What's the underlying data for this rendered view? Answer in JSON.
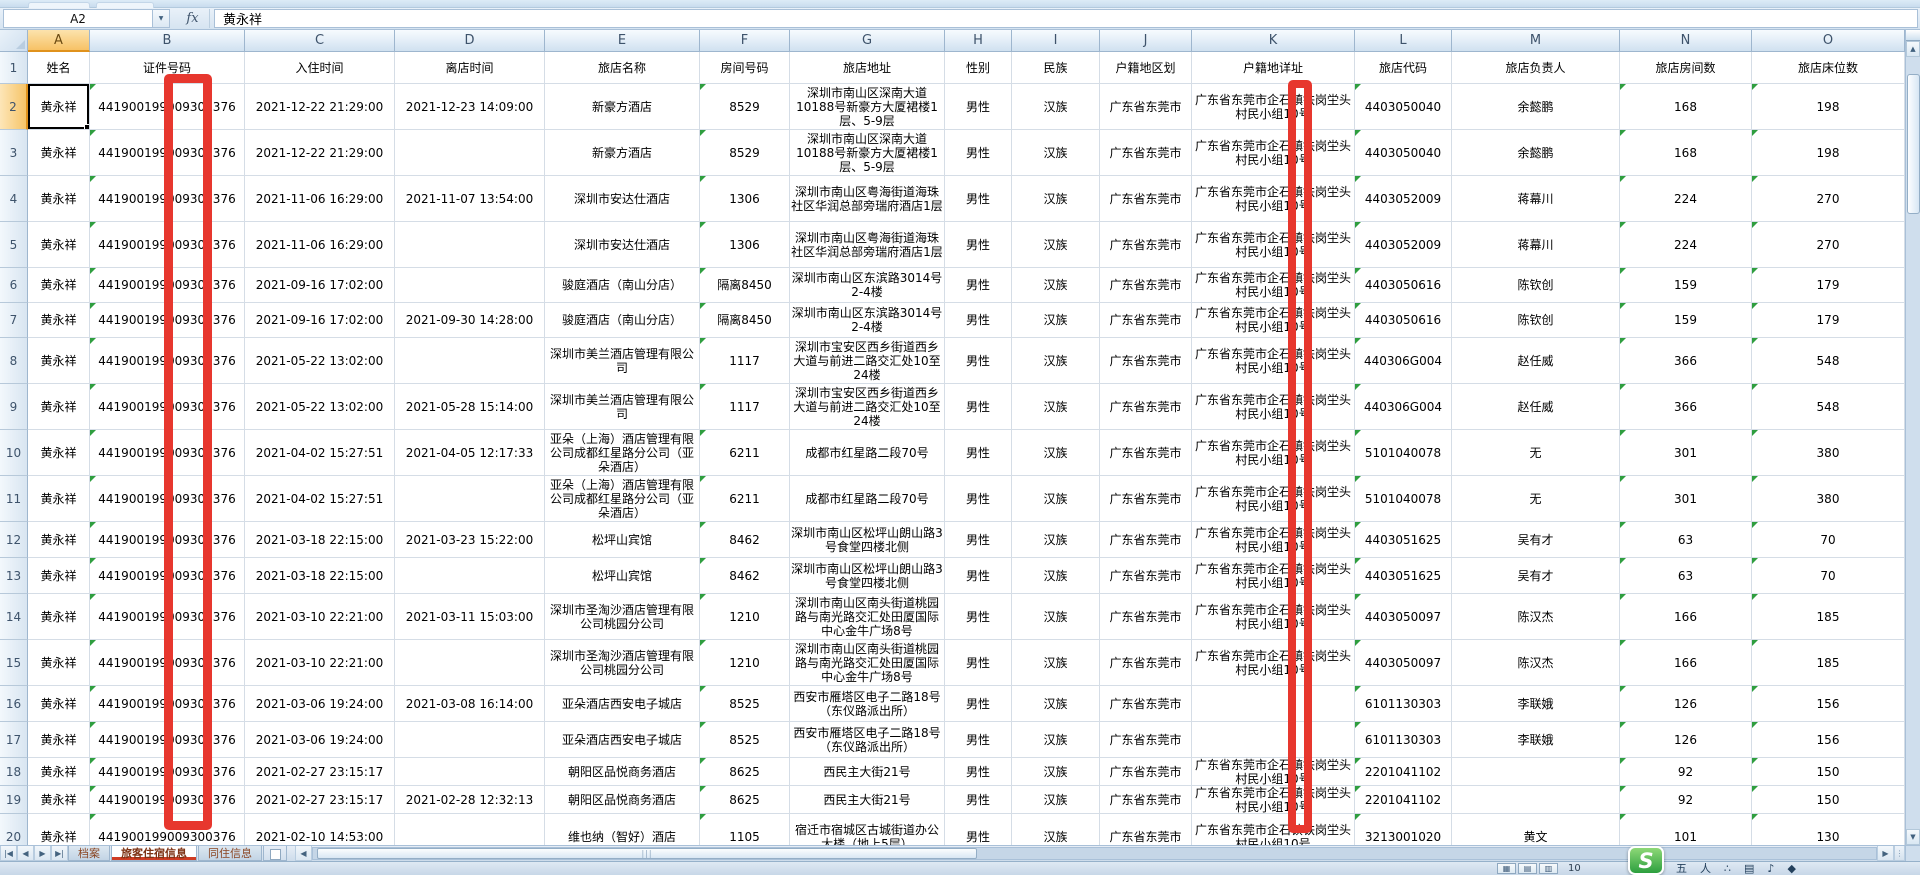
{
  "formula_bar": {
    "name_box": "A2",
    "fx_label": "fx",
    "value": "黄永祥"
  },
  "sheet": {
    "col_letters": [
      "A",
      "B",
      "C",
      "D",
      "E",
      "F",
      "G",
      "H",
      "I",
      "J",
      "K",
      "L",
      "M",
      "N",
      "O"
    ],
    "selected_col": "A",
    "selected_row": 2,
    "field_headers": [
      "姓名",
      "证件号码",
      "入住时间",
      "离店时间",
      "旅店名称",
      "房间号码",
      "旅店地址",
      "性别",
      "民族",
      "户籍地区划",
      "户籍地详址",
      "旅店代码",
      "旅店负责人",
      "旅店房间数",
      "旅店床位数"
    ],
    "rows": [
      {
        "n": 2,
        "cells": [
          "黄永祥",
          "441900199009300376",
          "2021-12-22 21:29:00",
          "2021-12-23 14:09:00",
          "新豪方酒店",
          "8529",
          "深圳市南山区深南大道10188号新豪方大厦裙楼1层、5-9层",
          "男性",
          "汉族",
          "广东省东莞市",
          "广东省东莞市企石镇铁岗坣头村民小组10号",
          "4403050040",
          "余懿鹏",
          "168",
          "198"
        ]
      },
      {
        "n": 3,
        "cells": [
          "黄永祥",
          "441900199009300376",
          "2021-12-22 21:29:00",
          "",
          "新豪方酒店",
          "8529",
          "深圳市南山区深南大道10188号新豪方大厦裙楼1层、5-9层",
          "男性",
          "汉族",
          "广东省东莞市",
          "广东省东莞市企石镇铁岗坣头村民小组10号",
          "4403050040",
          "余懿鹏",
          "168",
          "198"
        ]
      },
      {
        "n": 4,
        "cells": [
          "黄永祥",
          "441900199009300376",
          "2021-11-06 16:29:00",
          "2021-11-07 13:54:00",
          "深圳市安达仕酒店",
          "1306",
          "深圳市南山区粤海街道海珠社区华润总部旁瑞府酒店1层",
          "男性",
          "汉族",
          "广东省东莞市",
          "广东省东莞市企石镇铁岗坣头村民小组10号",
          "4403052009",
          "蒋幕川",
          "224",
          "270"
        ]
      },
      {
        "n": 5,
        "cells": [
          "黄永祥",
          "441900199009300376",
          "2021-11-06 16:29:00",
          "",
          "深圳市安达仕酒店",
          "1306",
          "深圳市南山区粤海街道海珠社区华润总部旁瑞府酒店1层",
          "男性",
          "汉族",
          "广东省东莞市",
          "广东省东莞市企石镇铁岗坣头村民小组10号",
          "4403052009",
          "蒋幕川",
          "224",
          "270"
        ]
      },
      {
        "n": 6,
        "cells": [
          "黄永祥",
          "441900199009300376",
          "2021-09-16 17:02:00",
          "",
          "骏庭酒店（南山分店）",
          "隔离8450",
          "深圳市南山区东滨路3014号2-4楼",
          "男性",
          "汉族",
          "广东省东莞市",
          "广东省东莞市企石镇铁岗坣头村民小组10号",
          "4403050616",
          "陈钦创",
          "159",
          "179"
        ]
      },
      {
        "n": 7,
        "cells": [
          "黄永祥",
          "441900199009300376",
          "2021-09-16 17:02:00",
          "2021-09-30 14:28:00",
          "骏庭酒店（南山分店）",
          "隔离8450",
          "深圳市南山区东滨路3014号2-4楼",
          "男性",
          "汉族",
          "广东省东莞市",
          "广东省东莞市企石镇铁岗坣头村民小组10号",
          "4403050616",
          "陈钦创",
          "159",
          "179"
        ]
      },
      {
        "n": 8,
        "cells": [
          "黄永祥",
          "441900199009300376",
          "2021-05-22 13:02:00",
          "",
          "深圳市美兰酒店管理有限公司",
          "1117",
          "深圳市宝安区西乡街道西乡大道与前进二路交汇处10至24楼",
          "男性",
          "汉族",
          "广东省东莞市",
          "广东省东莞市企石镇铁岗坣头村民小组10号",
          "440306G004",
          "赵任威",
          "366",
          "548"
        ]
      },
      {
        "n": 9,
        "cells": [
          "黄永祥",
          "441900199009300376",
          "2021-05-22 13:02:00",
          "2021-05-28 15:14:00",
          "深圳市美兰酒店管理有限公司",
          "1117",
          "深圳市宝安区西乡街道西乡大道与前进二路交汇处10至24楼",
          "男性",
          "汉族",
          "广东省东莞市",
          "广东省东莞市企石镇铁岗坣头村民小组10号",
          "440306G004",
          "赵任威",
          "366",
          "548"
        ]
      },
      {
        "n": 10,
        "cells": [
          "黄永祥",
          "441900199009300376",
          "2021-04-02 15:27:51",
          "2021-04-05 12:17:33",
          "亚朵（上海）酒店管理有限公司成都红星路分公司（亚朵酒店）",
          "6211",
          "成都市红星路二段70号",
          "男性",
          "汉族",
          "广东省东莞市",
          "广东省东莞市企石镇铁岗坣头村民小组10号",
          "5101040078",
          "无",
          "301",
          "380"
        ]
      },
      {
        "n": 11,
        "cells": [
          "黄永祥",
          "441900199009300376",
          "2021-04-02 15:27:51",
          "",
          "亚朵（上海）酒店管理有限公司成都红星路分公司（亚朵酒店）",
          "6211",
          "成都市红星路二段70号",
          "男性",
          "汉族",
          "广东省东莞市",
          "广东省东莞市企石镇铁岗坣头村民小组10号",
          "5101040078",
          "无",
          "301",
          "380"
        ]
      },
      {
        "n": 12,
        "cells": [
          "黄永祥",
          "441900199009300376",
          "2021-03-18 22:15:00",
          "2021-03-23 15:22:00",
          "松坪山宾馆",
          "8462",
          "深圳市南山区松坪山朗山路3号食堂四楼北侧",
          "男性",
          "汉族",
          "广东省东莞市",
          "广东省东莞市企石镇铁岗坣头村民小组10号",
          "4403051625",
          "吴有才",
          "63",
          "70"
        ]
      },
      {
        "n": 13,
        "cells": [
          "黄永祥",
          "441900199009300376",
          "2021-03-18 22:15:00",
          "",
          "松坪山宾馆",
          "8462",
          "深圳市南山区松坪山朗山路3号食堂四楼北侧",
          "男性",
          "汉族",
          "广东省东莞市",
          "广东省东莞市企石镇铁岗坣头村民小组10号",
          "4403051625",
          "吴有才",
          "63",
          "70"
        ]
      },
      {
        "n": 14,
        "cells": [
          "黄永祥",
          "441900199009300376",
          "2021-03-10 22:21:00",
          "2021-03-11 15:03:00",
          "深圳市圣淘沙酒店管理有限公司桃园分公司",
          "1210",
          "深圳市南山区南头街道桃园路与南光路交汇处田厦国际中心金牛广场8号",
          "男性",
          "汉族",
          "广东省东莞市",
          "广东省东莞市企石镇铁岗坣头村民小组10号",
          "4403050097",
          "陈汉杰",
          "166",
          "185"
        ]
      },
      {
        "n": 15,
        "cells": [
          "黄永祥",
          "441900199009300376",
          "2021-03-10 22:21:00",
          "",
          "深圳市圣淘沙酒店管理有限公司桃园分公司",
          "1210",
          "深圳市南山区南头街道桃园路与南光路交汇处田厦国际中心金牛广场8号",
          "男性",
          "汉族",
          "广东省东莞市",
          "广东省东莞市企石镇铁岗坣头村民小组10号",
          "4403050097",
          "陈汉杰",
          "166",
          "185"
        ]
      },
      {
        "n": 16,
        "cells": [
          "黄永祥",
          "441900199009300376",
          "2021-03-06 19:24:00",
          "2021-03-08 16:14:00",
          "亚朵酒店西安电子城店",
          "8525",
          "西安市雁塔区电子二路18号（东仪路派出所）",
          "男性",
          "汉族",
          "广东省东莞市",
          "",
          "6101130303",
          "李联娥",
          "126",
          "156"
        ]
      },
      {
        "n": 17,
        "cells": [
          "黄永祥",
          "441900199009300376",
          "2021-03-06 19:24:00",
          "",
          "亚朵酒店西安电子城店",
          "8525",
          "西安市雁塔区电子二路18号（东仪路派出所）",
          "男性",
          "汉族",
          "广东省东莞市",
          "",
          "6101130303",
          "李联娥",
          "126",
          "156"
        ]
      },
      {
        "n": 18,
        "cells": [
          "黄永祥",
          "441900199009300376",
          "2021-02-27 23:15:17",
          "",
          "朝阳区品悦商务酒店",
          "8625",
          "西民主大街21号",
          "男性",
          "汉族",
          "广东省东莞市",
          "广东省东莞市企石镇铁岗坣头村民小组10号",
          "2201041102",
          "",
          "92",
          "150"
        ]
      },
      {
        "n": 19,
        "cells": [
          "黄永祥",
          "441900199009300376",
          "2021-02-27 23:15:17",
          "2021-02-28 12:32:13",
          "朝阳区品悦商务酒店",
          "8625",
          "西民主大街21号",
          "男性",
          "汉族",
          "广东省东莞市",
          "广东省东莞市企石镇铁岗坣头村民小组10号",
          "2201041102",
          "",
          "92",
          "150"
        ]
      },
      {
        "n": 20,
        "cells": [
          "黄永祥",
          "441900199009300376",
          "2021-02-10 14:53:00",
          "",
          "维也纳（智好）酒店",
          "1105",
          "宿迁市宿城区古城街道办公大楼（地上5层）",
          "男性",
          "汉族",
          "广东省东莞市",
          "广东省东莞市企石镇铁岗坣头村民小组10号",
          "3213001020",
          "黄文",
          "101",
          "130"
        ]
      }
    ]
  },
  "tabs": {
    "items": [
      "档案",
      "旅客住宿信息",
      "同住信息"
    ],
    "active": "旅客住宿信息"
  },
  "icons": {
    "name_box_dropdown": "▼",
    "tab_first": "|◀",
    "tab_prev": "◀",
    "tab_next": "▶",
    "tab_last": "▶|",
    "h_left": "◀",
    "h_right": "▶",
    "v_up": "▲",
    "v_down": "▼",
    "h_grip": "|||",
    "split_grip": "⋮",
    "view_normal": "▦",
    "view_layout": "▤",
    "view_break": "▥"
  },
  "status": {
    "zoom_text": "10"
  },
  "ime": {
    "logo": "S",
    "icons": [
      "五",
      "人",
      "∴",
      "▤",
      "♪",
      "◆"
    ]
  },
  "annotations": {
    "red_color": "#e7372e"
  }
}
